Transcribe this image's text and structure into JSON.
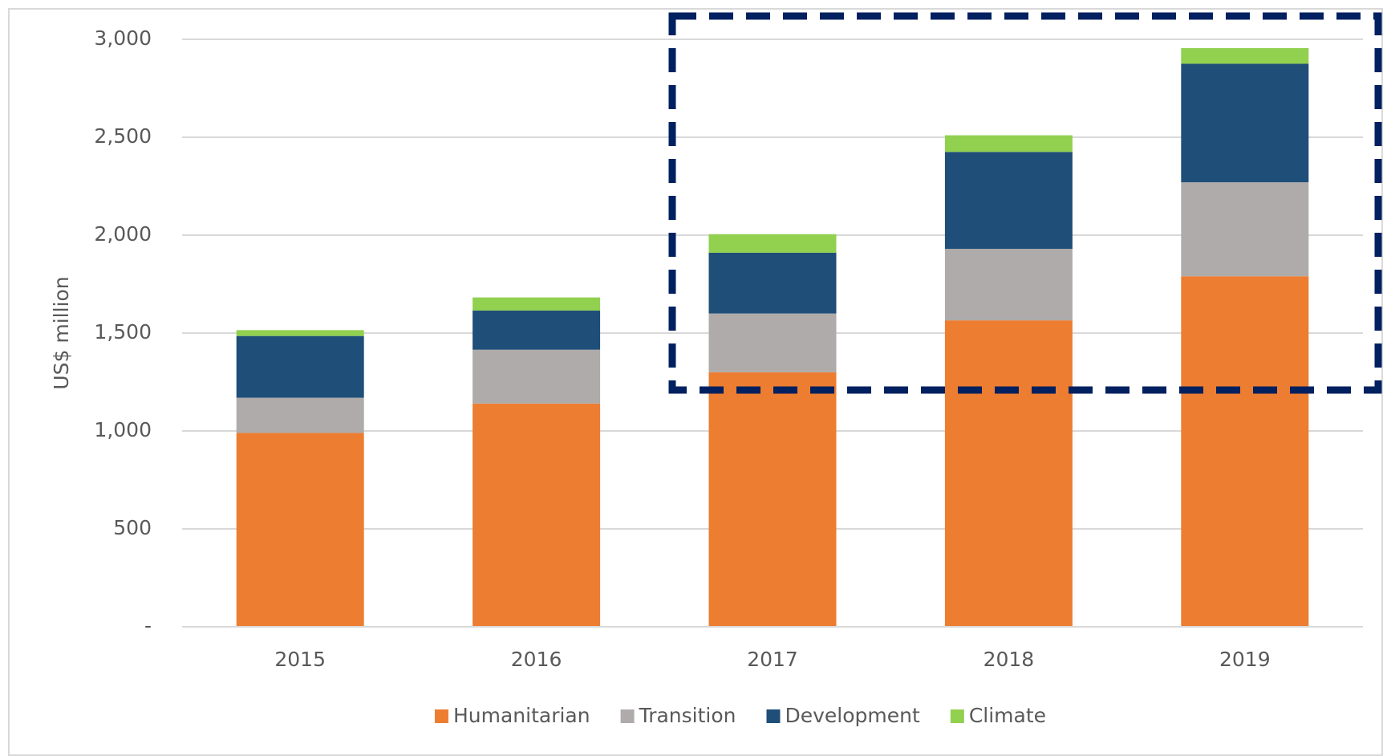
{
  "chart_data": {
    "type": "stacked_bar",
    "y_axis_label": "US$ million",
    "categories": [
      "2015",
      "2016",
      "2017",
      "2018",
      "2019"
    ],
    "series": [
      {
        "name": "Humanitarian",
        "color": "#ED7D31",
        "values": [
          990,
          1140,
          1300,
          1565,
          1790
        ]
      },
      {
        "name": "Transition",
        "color": "#AEABAA",
        "values": [
          180,
          275,
          300,
          365,
          480
        ]
      },
      {
        "name": "Development",
        "color": "#1F4E79",
        "values": [
          315,
          200,
          310,
          495,
          605
        ]
      },
      {
        "name": "Climate",
        "color": "#92D050",
        "values": [
          30,
          67,
          95,
          85,
          80
        ]
      }
    ],
    "ylim": [
      0,
      3000
    ],
    "yticks": [
      {
        "value": 0,
        "label": "-"
      },
      500,
      {
        "value": 1000,
        "label": "1,000"
      },
      {
        "value": 1500,
        "label": "1,500"
      },
      {
        "value": 2000,
        "label": "2,000"
      },
      {
        "value": 2500,
        "label": "2,500"
      },
      {
        "value": 3000,
        "label": "3,000"
      }
    ],
    "grid": true,
    "legend": "bottom"
  }
}
